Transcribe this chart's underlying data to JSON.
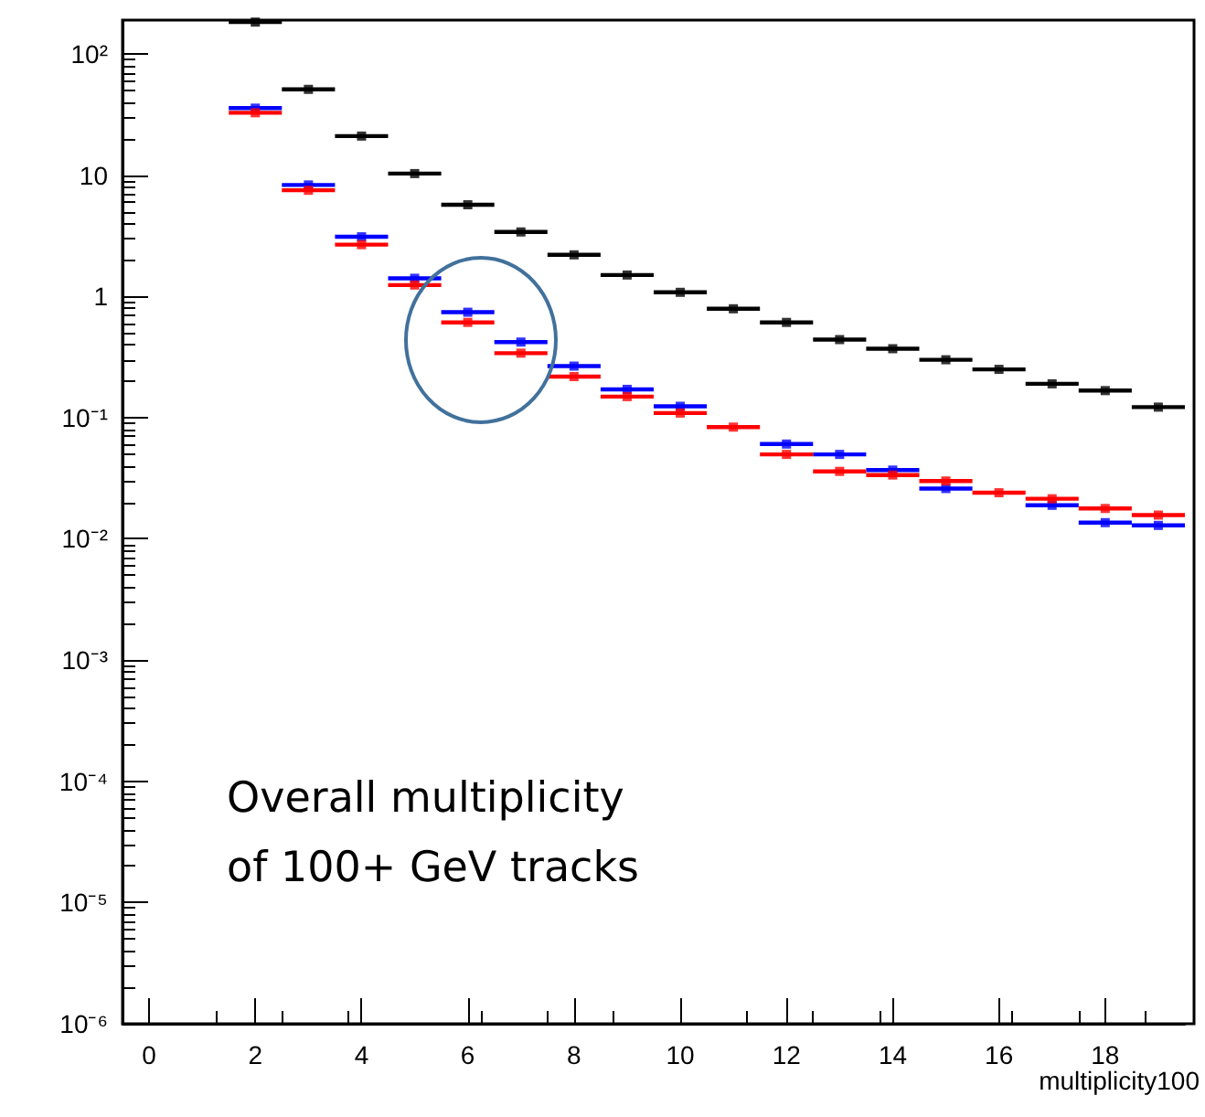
{
  "chart_data": {
    "type": "scatter",
    "xlabel": "multiplicity100",
    "marker": "square",
    "annotations": [
      "Overall multiplicity\nof 100+ GeV tracks"
    ],
    "x": [
      2,
      3,
      4,
      5,
      6,
      7,
      8,
      9,
      10,
      11,
      12,
      13,
      14,
      15,
      16,
      17,
      18,
      19
    ],
    "series": [
      {
        "color": "#000000",
        "values": [
          183,
          51,
          21,
          10.3,
          5.7,
          3.4,
          2.2,
          1.5,
          1.08,
          0.79,
          0.61,
          0.44,
          0.37,
          0.3,
          0.25,
          0.19,
          0.167,
          0.122
        ],
        "xerrors": [
          0.5,
          0.5,
          0.5,
          0.5,
          0.5,
          0.5,
          0.5,
          0.5,
          0.5,
          0.5,
          0.5,
          0.5,
          0.5,
          0.5,
          0.5,
          0.5,
          0.5,
          0.5
        ]
      },
      {
        "color": "#0000ff",
        "values": [
          35.7,
          8.3,
          3.1,
          1.41,
          0.74,
          0.42,
          0.266,
          0.171,
          0.124,
          null,
          0.0605,
          0.0497,
          0.0369,
          0.026,
          null,
          0.0189,
          0.0136,
          0.0129
        ],
        "xerrors": [
          0.5,
          0.5,
          0.5,
          0.5,
          0.5,
          0.5,
          0.5,
          0.5,
          0.5,
          null,
          0.5,
          0.5,
          0.5,
          0.5,
          null,
          0.5,
          0.5,
          0.5
        ]
      },
      {
        "color": "#ff0000",
        "values": [
          32.7,
          7.5,
          2.67,
          1.24,
          0.61,
          0.34,
          0.218,
          0.149,
          0.109,
          0.0835,
          0.0497,
          0.036,
          0.0336,
          0.03,
          0.024,
          0.0214,
          0.0178,
          0.0157
        ],
        "xerrors": [
          0.5,
          0.5,
          0.5,
          0.5,
          0.5,
          0.5,
          0.5,
          0.5,
          0.5,
          0.5,
          0.5,
          0.5,
          0.5,
          0.5,
          0.5,
          0.5,
          0.5,
          0.5
        ]
      }
    ],
    "xlim": [
      -0.5,
      19.5
    ],
    "xticks": [
      0,
      2,
      4,
      6,
      8,
      10,
      12,
      14,
      16,
      18
    ],
    "ylim": [
      1e-06,
      190
    ],
    "yticks": [
      {
        "value": 1e-06,
        "label": "10⁻⁶"
      },
      {
        "value": 1e-05,
        "label": "10⁻⁵"
      },
      {
        "value": 0.0001,
        "label": "10⁻⁴"
      },
      {
        "value": 0.001,
        "label": "10⁻³"
      },
      {
        "value": 0.01,
        "label": "10⁻²"
      },
      {
        "value": 0.1,
        "label": "10⁻¹"
      },
      1,
      10,
      {
        "value": 100,
        "label": "10²"
      }
    ],
    "log": "y",
    "grid": false
  }
}
